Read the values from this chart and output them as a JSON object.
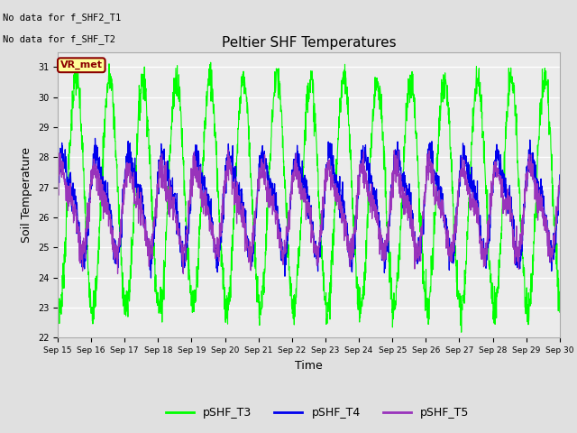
{
  "title": "Peltier SHF Temperatures",
  "xlabel": "Time",
  "ylabel": "Soil Temperature",
  "ylim": [
    22.0,
    31.5
  ],
  "yticks": [
    22.0,
    23.0,
    24.0,
    25.0,
    26.0,
    27.0,
    28.0,
    29.0,
    30.0,
    31.0
  ],
  "xtick_labels": [
    "Sep 15",
    "Sep 16",
    "Sep 17",
    "Sep 18",
    "Sep 19",
    "Sep 20",
    "Sep 21",
    "Sep 22",
    "Sep 23",
    "Sep 24",
    "Sep 25",
    "Sep 26",
    "Sep 27",
    "Sep 28",
    "Sep 29",
    "Sep 30"
  ],
  "annotation1": "No data for f_SHF2_T1",
  "annotation2": "No data for f_SHF_T2",
  "vr_met_label": "VR_met",
  "line_colors": {
    "pSHF_T3": "#00FF00",
    "pSHF_T4": "#0000EE",
    "pSHF_T5": "#9933BB"
  },
  "legend_labels": [
    "pSHF_T3",
    "pSHF_T4",
    "pSHF_T5"
  ],
  "bg_color": "#E0E0E0",
  "plot_bg": "#EBEBEB",
  "n_days": 15,
  "points_per_day": 144,
  "T3_mean": 26.8,
  "T3_amp": 3.8,
  "T3_period": 1.0,
  "T4_mean": 26.5,
  "T4_amp": 1.5,
  "T5_mean": 26.3,
  "T5_amp": 1.2
}
